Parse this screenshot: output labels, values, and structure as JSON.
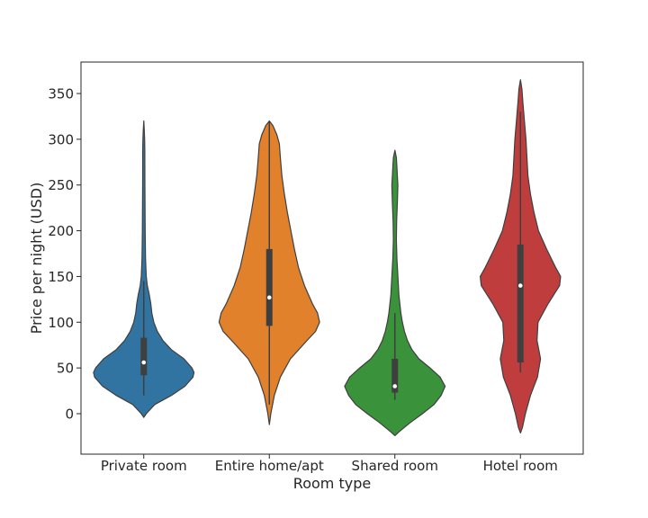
{
  "chart_data": {
    "type": "violin",
    "title": "",
    "xlabel": "Room type",
    "ylabel": "Price per night (USD)",
    "ylim": [
      -45,
      385
    ],
    "yticks": [
      0,
      50,
      100,
      150,
      200,
      250,
      300,
      350
    ],
    "grid": false,
    "legend": "none",
    "categories": [
      "Private room",
      "Entire home/apt",
      "Shared room",
      "Hotel room"
    ],
    "series": [
      {
        "category": "Private room",
        "color": "#3274a1",
        "range": [
          -4,
          320
        ],
        "box": {
          "q1": 42,
          "median": 56,
          "q3": 83
        },
        "whisker": [
          20,
          145
        ],
        "density_profile": [
          [
            -4,
            0
          ],
          [
            0,
            0.05
          ],
          [
            10,
            0.22
          ],
          [
            20,
            0.55
          ],
          [
            30,
            0.82
          ],
          [
            40,
            0.98
          ],
          [
            45,
            1.0
          ],
          [
            50,
            0.96
          ],
          [
            60,
            0.8
          ],
          [
            70,
            0.55
          ],
          [
            80,
            0.38
          ],
          [
            90,
            0.27
          ],
          [
            100,
            0.2
          ],
          [
            110,
            0.16
          ],
          [
            120,
            0.14
          ],
          [
            130,
            0.11
          ],
          [
            140,
            0.07
          ],
          [
            150,
            0.05
          ],
          [
            170,
            0.035
          ],
          [
            200,
            0.028
          ],
          [
            250,
            0.022
          ],
          [
            290,
            0.02
          ],
          [
            300,
            0.017
          ],
          [
            310,
            0.01
          ],
          [
            320,
            0
          ]
        ]
      },
      {
        "category": "Entire home/apt",
        "color": "#e1812c",
        "range": [
          -12,
          320
        ],
        "box": {
          "q1": 96,
          "median": 127,
          "q3": 180
        },
        "whisker": [
          10,
          320
        ],
        "density_profile": [
          [
            -12,
            0
          ],
          [
            0,
            0.03
          ],
          [
            20,
            0.1
          ],
          [
            40,
            0.22
          ],
          [
            60,
            0.42
          ],
          [
            80,
            0.75
          ],
          [
            90,
            0.92
          ],
          [
            100,
            1.0
          ],
          [
            110,
            0.96
          ],
          [
            120,
            0.86
          ],
          [
            140,
            0.7
          ],
          [
            160,
            0.58
          ],
          [
            180,
            0.5
          ],
          [
            200,
            0.43
          ],
          [
            220,
            0.36
          ],
          [
            240,
            0.3
          ],
          [
            260,
            0.25
          ],
          [
            280,
            0.22
          ],
          [
            295,
            0.2
          ],
          [
            305,
            0.15
          ],
          [
            315,
            0.07
          ],
          [
            320,
            0
          ]
        ]
      },
      {
        "category": "Shared room",
        "color": "#3a923a",
        "range": [
          -24,
          288
        ],
        "box": {
          "q1": 23,
          "median": 30,
          "q3": 60
        },
        "whisker": [
          15,
          110
        ],
        "density_profile": [
          [
            -24,
            0
          ],
          [
            -20,
            0.08
          ],
          [
            -10,
            0.3
          ],
          [
            0,
            0.55
          ],
          [
            10,
            0.78
          ],
          [
            20,
            0.92
          ],
          [
            30,
            1.0
          ],
          [
            40,
            0.9
          ],
          [
            50,
            0.7
          ],
          [
            60,
            0.48
          ],
          [
            70,
            0.34
          ],
          [
            80,
            0.25
          ],
          [
            90,
            0.19
          ],
          [
            100,
            0.15
          ],
          [
            110,
            0.12
          ],
          [
            120,
            0.1
          ],
          [
            130,
            0.08
          ],
          [
            150,
            0.06
          ],
          [
            170,
            0.04
          ],
          [
            190,
            0.03
          ],
          [
            210,
            0.035
          ],
          [
            230,
            0.05
          ],
          [
            250,
            0.06
          ],
          [
            260,
            0.05
          ],
          [
            270,
            0.04
          ],
          [
            280,
            0.03
          ],
          [
            288,
            0
          ]
        ]
      },
      {
        "category": "Hotel room",
        "color": "#c03d3e",
        "range": [
          -21,
          365
        ],
        "box": {
          "q1": 56,
          "median": 140,
          "q3": 185
        },
        "whisker": [
          45,
          330
        ],
        "density_profile": [
          [
            -21,
            0
          ],
          [
            -15,
            0.04
          ],
          [
            0,
            0.1
          ],
          [
            20,
            0.2
          ],
          [
            40,
            0.34
          ],
          [
            60,
            0.4
          ],
          [
            80,
            0.33
          ],
          [
            100,
            0.35
          ],
          [
            120,
            0.55
          ],
          [
            140,
            0.78
          ],
          [
            150,
            0.8
          ],
          [
            160,
            0.7
          ],
          [
            180,
            0.52
          ],
          [
            200,
            0.36
          ],
          [
            220,
            0.27
          ],
          [
            240,
            0.2
          ],
          [
            260,
            0.15
          ],
          [
            280,
            0.13
          ],
          [
            300,
            0.11
          ],
          [
            320,
            0.08
          ],
          [
            340,
            0.05
          ],
          [
            355,
            0.03
          ],
          [
            365,
            0
          ]
        ]
      }
    ]
  }
}
